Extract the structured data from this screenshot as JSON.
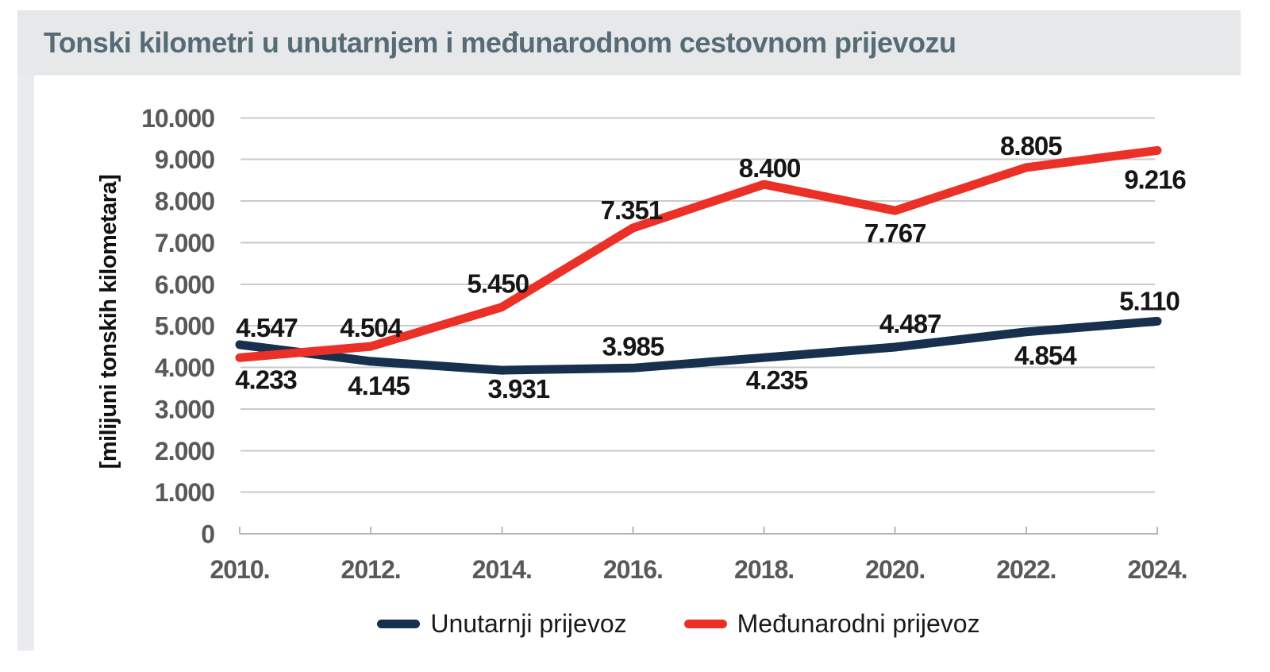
{
  "title": "Tonski kilometri u unutarnjem i međunarodnom cestovnom prijevozu",
  "chart_data": {
    "type": "line",
    "x": [
      2010,
      2012,
      2014,
      2016,
      2018,
      2020,
      2022,
      2024
    ],
    "x_tick_labels": [
      "2010.",
      "2012.",
      "2014.",
      "2016.",
      "2018.",
      "2020.",
      "2022.",
      "2024."
    ],
    "ylabel": "[milijuni tonskih kilometara]",
    "ylim": [
      0,
      10000
    ],
    "y_tick_interval": 1000,
    "y_tick_labels": [
      "0",
      "1.000",
      "2.000",
      "3.000",
      "4.000",
      "5.000",
      "6.000",
      "7.000",
      "8.000",
      "9.000",
      "10.000"
    ],
    "grid": "horizontal",
    "legend_position": "bottom-center",
    "series": [
      {
        "name": "Unutarnji prijevoz",
        "color": "#16304d",
        "values": [
          4547,
          4145,
          3931,
          3985,
          4235,
          4487,
          4854,
          5110
        ],
        "labels": [
          "4.547",
          "4.145",
          "3.931",
          "3.985",
          "4.235",
          "4.487",
          "4.854",
          "5.110"
        ],
        "label_offsets": [
          [
            34,
            -22
          ],
          [
            10,
            30
          ],
          [
            21,
            23
          ],
          [
            0,
            -28
          ],
          [
            16,
            28
          ],
          [
            19,
            -30
          ],
          [
            24,
            29
          ],
          [
            -10,
            -26
          ]
        ]
      },
      {
        "name": "Međunarodni prijevoz",
        "color": "#eb3127",
        "values": [
          4233,
          4504,
          5450,
          7351,
          8400,
          7767,
          8805,
          9216
        ],
        "labels": [
          "4.233",
          "4.504",
          "5.450",
          "7.351",
          "8.400",
          "7.767",
          "8.805",
          "9.216"
        ],
        "label_offsets": [
          [
            33,
            27
          ],
          [
            0,
            -24
          ],
          [
            -5,
            -30
          ],
          [
            -2,
            -23
          ],
          [
            7,
            -21
          ],
          [
            0,
            28
          ],
          [
            6,
            -28
          ],
          [
            -3,
            36
          ]
        ]
      }
    ]
  },
  "colors": {
    "title_text": "#566b76",
    "title_band": "#e7e8e9",
    "accent_strip": "#e9ebee",
    "gridline": "#c9cacb",
    "axis": "#b4b6b8",
    "tick_text": "#58595b",
    "data_label_text": "#161616"
  }
}
